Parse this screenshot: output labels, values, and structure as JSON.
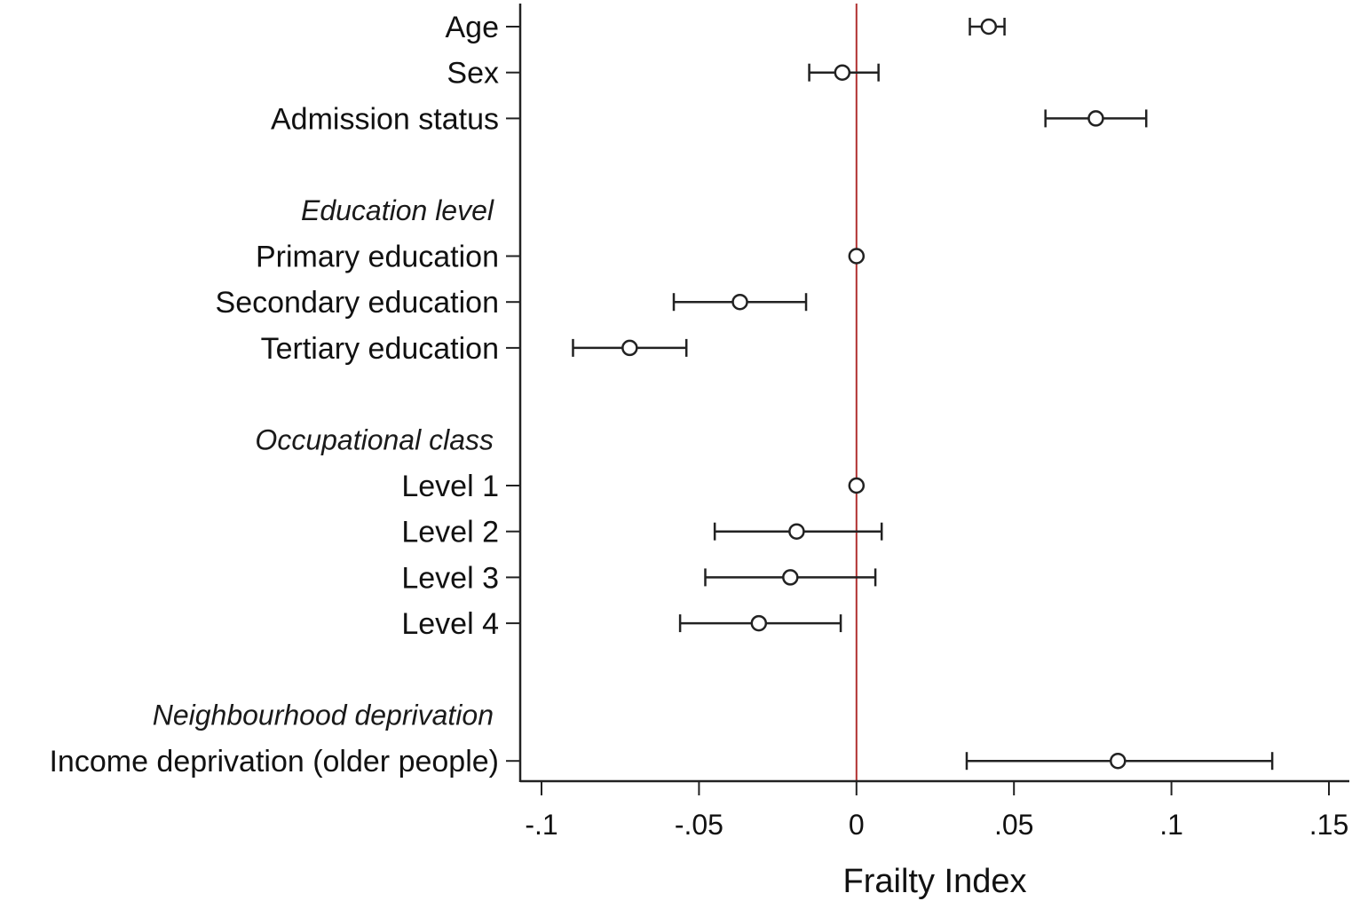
{
  "chart_data": {
    "type": "scatter",
    "subtype": "forest-plot",
    "xlabel": "Frailty Index",
    "xlim": [
      -0.1,
      0.15
    ],
    "xticks": [
      -0.1,
      -0.05,
      0,
      0.05,
      0.1,
      0.15
    ],
    "xtick_labels": [
      "-.1",
      "-.05",
      "0",
      ".05",
      ".1",
      ".15"
    ],
    "reference_line": {
      "x": 0,
      "color": "#b03030"
    },
    "marker": "hollow-circle",
    "grid": false,
    "legend": "none",
    "rows": [
      {
        "label": "Age",
        "kind": "item",
        "estimate": 0.042,
        "ci": [
          0.036,
          0.047
        ]
      },
      {
        "label": "Sex",
        "kind": "item",
        "estimate": -0.0045,
        "ci": [
          -0.015,
          0.007
        ]
      },
      {
        "label": "Admission status",
        "kind": "item",
        "estimate": 0.076,
        "ci": [
          0.06,
          0.092
        ]
      },
      {
        "label": "",
        "kind": "spacer"
      },
      {
        "label": "Education level",
        "kind": "group"
      },
      {
        "label": "Primary education",
        "kind": "item",
        "estimate": 0,
        "ci": [
          0,
          0
        ]
      },
      {
        "label": "Secondary education",
        "kind": "item",
        "estimate": -0.037,
        "ci": [
          -0.058,
          -0.016
        ]
      },
      {
        "label": "Tertiary education",
        "kind": "item",
        "estimate": -0.072,
        "ci": [
          -0.09,
          -0.054
        ]
      },
      {
        "label": "",
        "kind": "spacer"
      },
      {
        "label": "Occupational class",
        "kind": "group"
      },
      {
        "label": "Level 1",
        "kind": "item",
        "estimate": 0,
        "ci": [
          0,
          0
        ]
      },
      {
        "label": "Level 2",
        "kind": "item",
        "estimate": -0.019,
        "ci": [
          -0.045,
          0.008
        ]
      },
      {
        "label": "Level 3",
        "kind": "item",
        "estimate": -0.021,
        "ci": [
          -0.048,
          0.006
        ]
      },
      {
        "label": "Level 4",
        "kind": "item",
        "estimate": -0.031,
        "ci": [
          -0.056,
          -0.005
        ]
      },
      {
        "label": "",
        "kind": "spacer"
      },
      {
        "label": "Neighbourhood deprivation",
        "kind": "group"
      },
      {
        "label": "Income deprivation (older people)",
        "kind": "item",
        "estimate": 0.083,
        "ci": [
          0.035,
          0.132
        ]
      }
    ],
    "colors": {
      "marks": "#222222",
      "axis": "#222222",
      "reference": "#b03030"
    }
  }
}
